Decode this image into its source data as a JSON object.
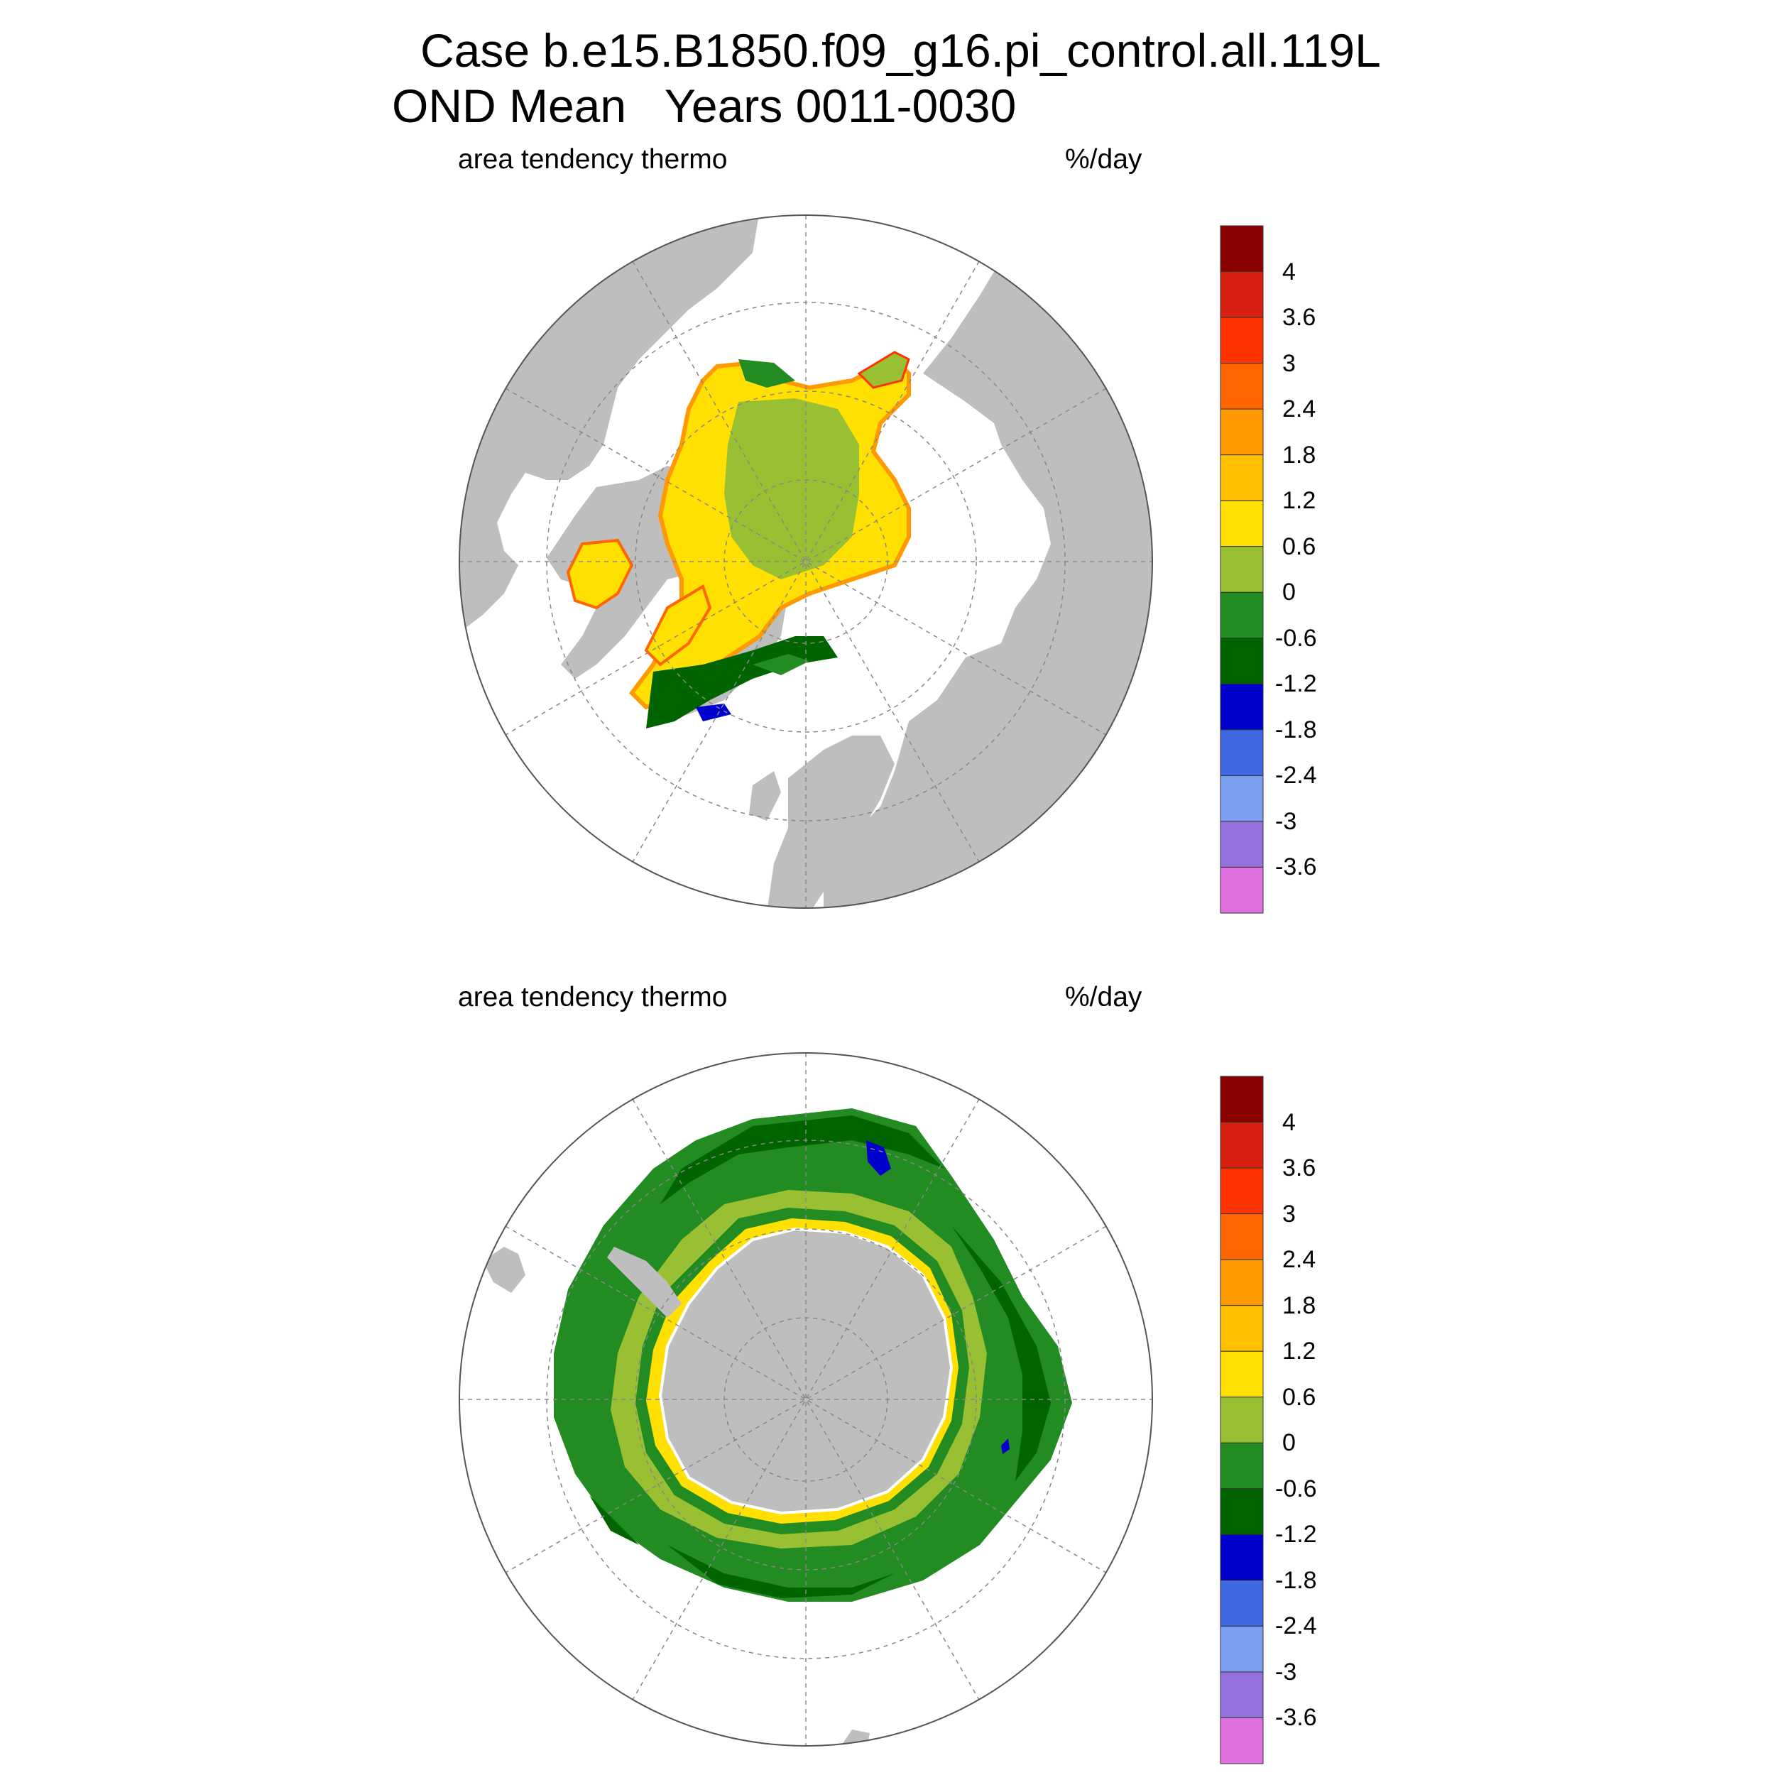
{
  "header": {
    "title_line1": "Case b.e15.B1850.f09_g16.pi_control.all.119L",
    "title_line2": "OND Mean   Years 0011-0030"
  },
  "panels": [
    {
      "id": "north",
      "left_label": "area tendency thermo",
      "right_label": "%/day"
    },
    {
      "id": "south",
      "left_label": "area tendency thermo",
      "right_label": "%/day"
    }
  ],
  "colorbar": {
    "labels": [
      "4",
      "3.6",
      "3",
      "2.4",
      "1.8",
      "1.2",
      "0.6",
      "0",
      "-0.6",
      "-1.2",
      "-1.8",
      "-2.4",
      "-3",
      "-3.6"
    ],
    "colors": [
      "#8b0000",
      "#d82010",
      "#ff3300",
      "#ff6600",
      "#ff9900",
      "#ffc000",
      "#ffe000",
      "#99c033",
      "#228b22",
      "#006400",
      "#0000cd",
      "#4169e1",
      "#7b9ff0",
      "#9370db",
      "#e070e0"
    ]
  },
  "colors": {
    "land": "#bebebe",
    "ocean": "#ffffff",
    "ice_interior_north": "#99c033",
    "ice_band_north": "#ffe000",
    "ice_edge_north": "#ff9900",
    "ice_edge_south_outer": "#006400",
    "ice_edge_south_mid": "#228b22",
    "ice_inner_south": "#99c033",
    "grid_line": "#888888"
  }
}
